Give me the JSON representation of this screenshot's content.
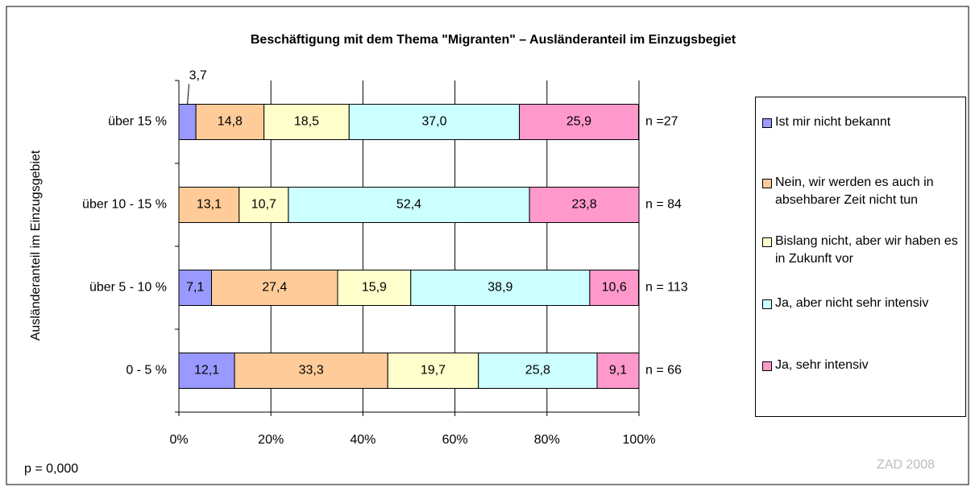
{
  "chart_data": {
    "type": "stacked_barh",
    "title": "Beschäftigung mit dem Thema \"Migranten\"  – Ausländeranteil im Einzugsbegiet",
    "y_label": "Ausländeranteil im Einzugsgebiet",
    "categories": [
      "über 15 %",
      "über 10 - 15 %",
      "über 5 - 10 %",
      "0 - 5 %"
    ],
    "series": [
      {
        "name": "Ist mir nicht bekannt",
        "color": "#9999ff",
        "values": [
          3.7,
          null,
          7.1,
          12.1
        ],
        "value_labels": [
          "3,7",
          null,
          "7,1",
          "12,1"
        ]
      },
      {
        "name": "Nein, wir werden es auch in absehbarer Zeit nicht tun",
        "color": "#ffcc99",
        "values": [
          14.8,
          13.1,
          27.4,
          33.3
        ],
        "value_labels": [
          "14,8",
          "13,1",
          "27,4",
          "33,3"
        ]
      },
      {
        "name": "Bislang nicht, aber wir haben es in Zukunft vor",
        "color": "#ffffcc",
        "values": [
          18.5,
          10.7,
          15.9,
          19.7
        ],
        "value_labels": [
          "18,5",
          "10,7",
          "15,9",
          "19,7"
        ]
      },
      {
        "name": "Ja, aber nicht sehr intensiv",
        "color": "#ccffff",
        "values": [
          37.0,
          52.4,
          38.9,
          25.8
        ],
        "value_labels": [
          "37,0",
          "52,4",
          "38,9",
          "25,8"
        ]
      },
      {
        "name": "Ja, sehr intensiv",
        "color": "#ff99cc",
        "values": [
          25.9,
          23.8,
          10.6,
          9.1
        ],
        "value_labels": [
          "25,9",
          "23,8",
          "10,6",
          "9,1"
        ]
      }
    ],
    "n_labels": [
      "n =27",
      "n = 84",
      "n = 113",
      "n = 66"
    ],
    "xlim": [
      0,
      100
    ],
    "xticks": [
      {
        "value": 0,
        "label": "0%"
      },
      {
        "value": 20,
        "label": "20%"
      },
      {
        "value": 40,
        "label": "40%"
      },
      {
        "value": 60,
        "label": "60%"
      },
      {
        "value": 80,
        "label": "80%"
      },
      {
        "value": 100,
        "label": "100%"
      }
    ],
    "grid": true,
    "legend": "right",
    "footnote": "p = 0,000",
    "source": "ZAD 2008"
  }
}
